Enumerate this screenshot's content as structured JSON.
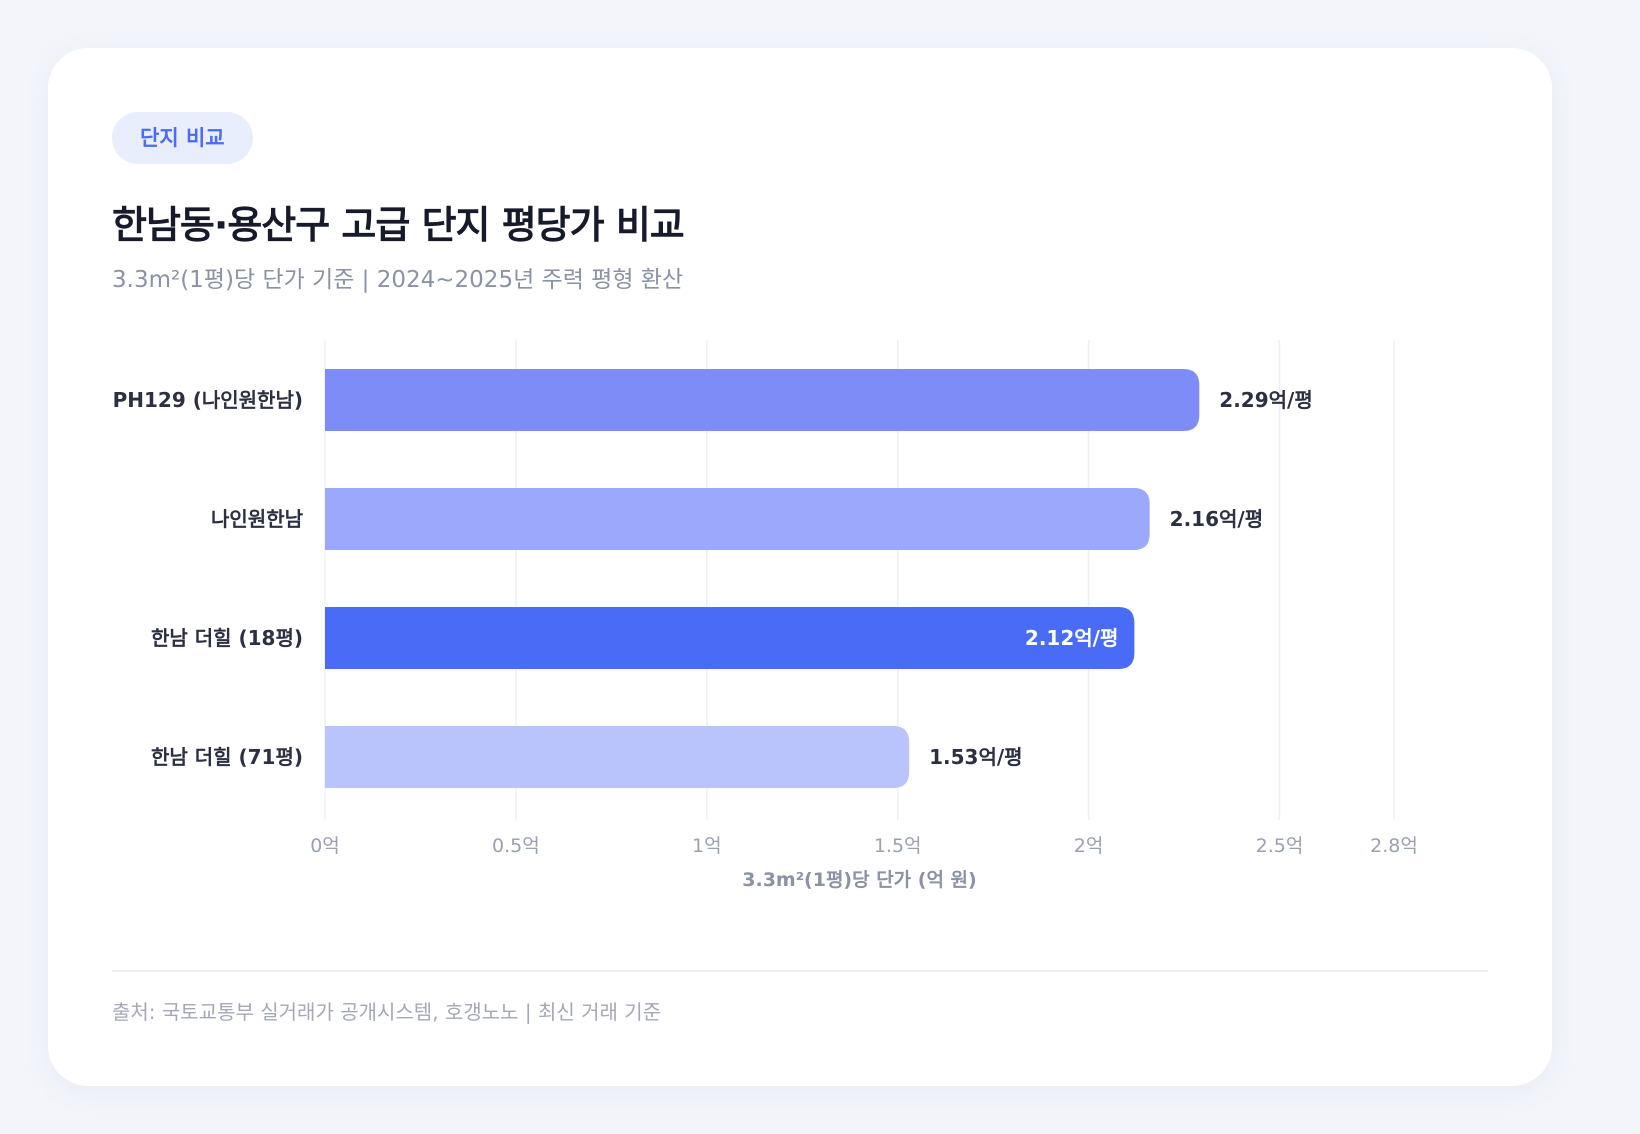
{
  "badge": "단지 비교",
  "title": "한남동·용산구 고급 단지 평당가 비교",
  "subtitle": "3.3m²(1평)당 단가 기준 | 2024~2025년 주력 평형 환산",
  "source": "출처: 국토교통부 실거래가 공개시스템, 호갱노노 | 최신 거래 기준",
  "chart_data": {
    "type": "bar",
    "orientation": "horizontal",
    "categories": [
      "PH129 (나인원한남)",
      "나인원한남",
      "한남 더힐 (18평)",
      "한남 더힐 (71평)"
    ],
    "values": [
      2.29,
      2.16,
      2.12,
      1.53
    ],
    "value_labels": [
      "2.29억/평",
      "2.16억/평",
      "2.12억/평",
      "1.53억/평"
    ],
    "bar_colors": [
      "#7e8cf8",
      "#9ca8fb",
      "#4a6bf5",
      "#b9c3fc"
    ],
    "highlight_index": 2,
    "xlim": [
      0,
      2.8
    ],
    "x_ticks": [
      0,
      0.5,
      1,
      1.5,
      2,
      2.5,
      2.8
    ],
    "x_tick_labels": [
      "0억",
      "0.5억",
      "1억",
      "1.5억",
      "2억",
      "2.5억",
      "2.8억"
    ],
    "xlabel": "3.3m²(1평)당 단가 (억 원)",
    "grid": true
  }
}
